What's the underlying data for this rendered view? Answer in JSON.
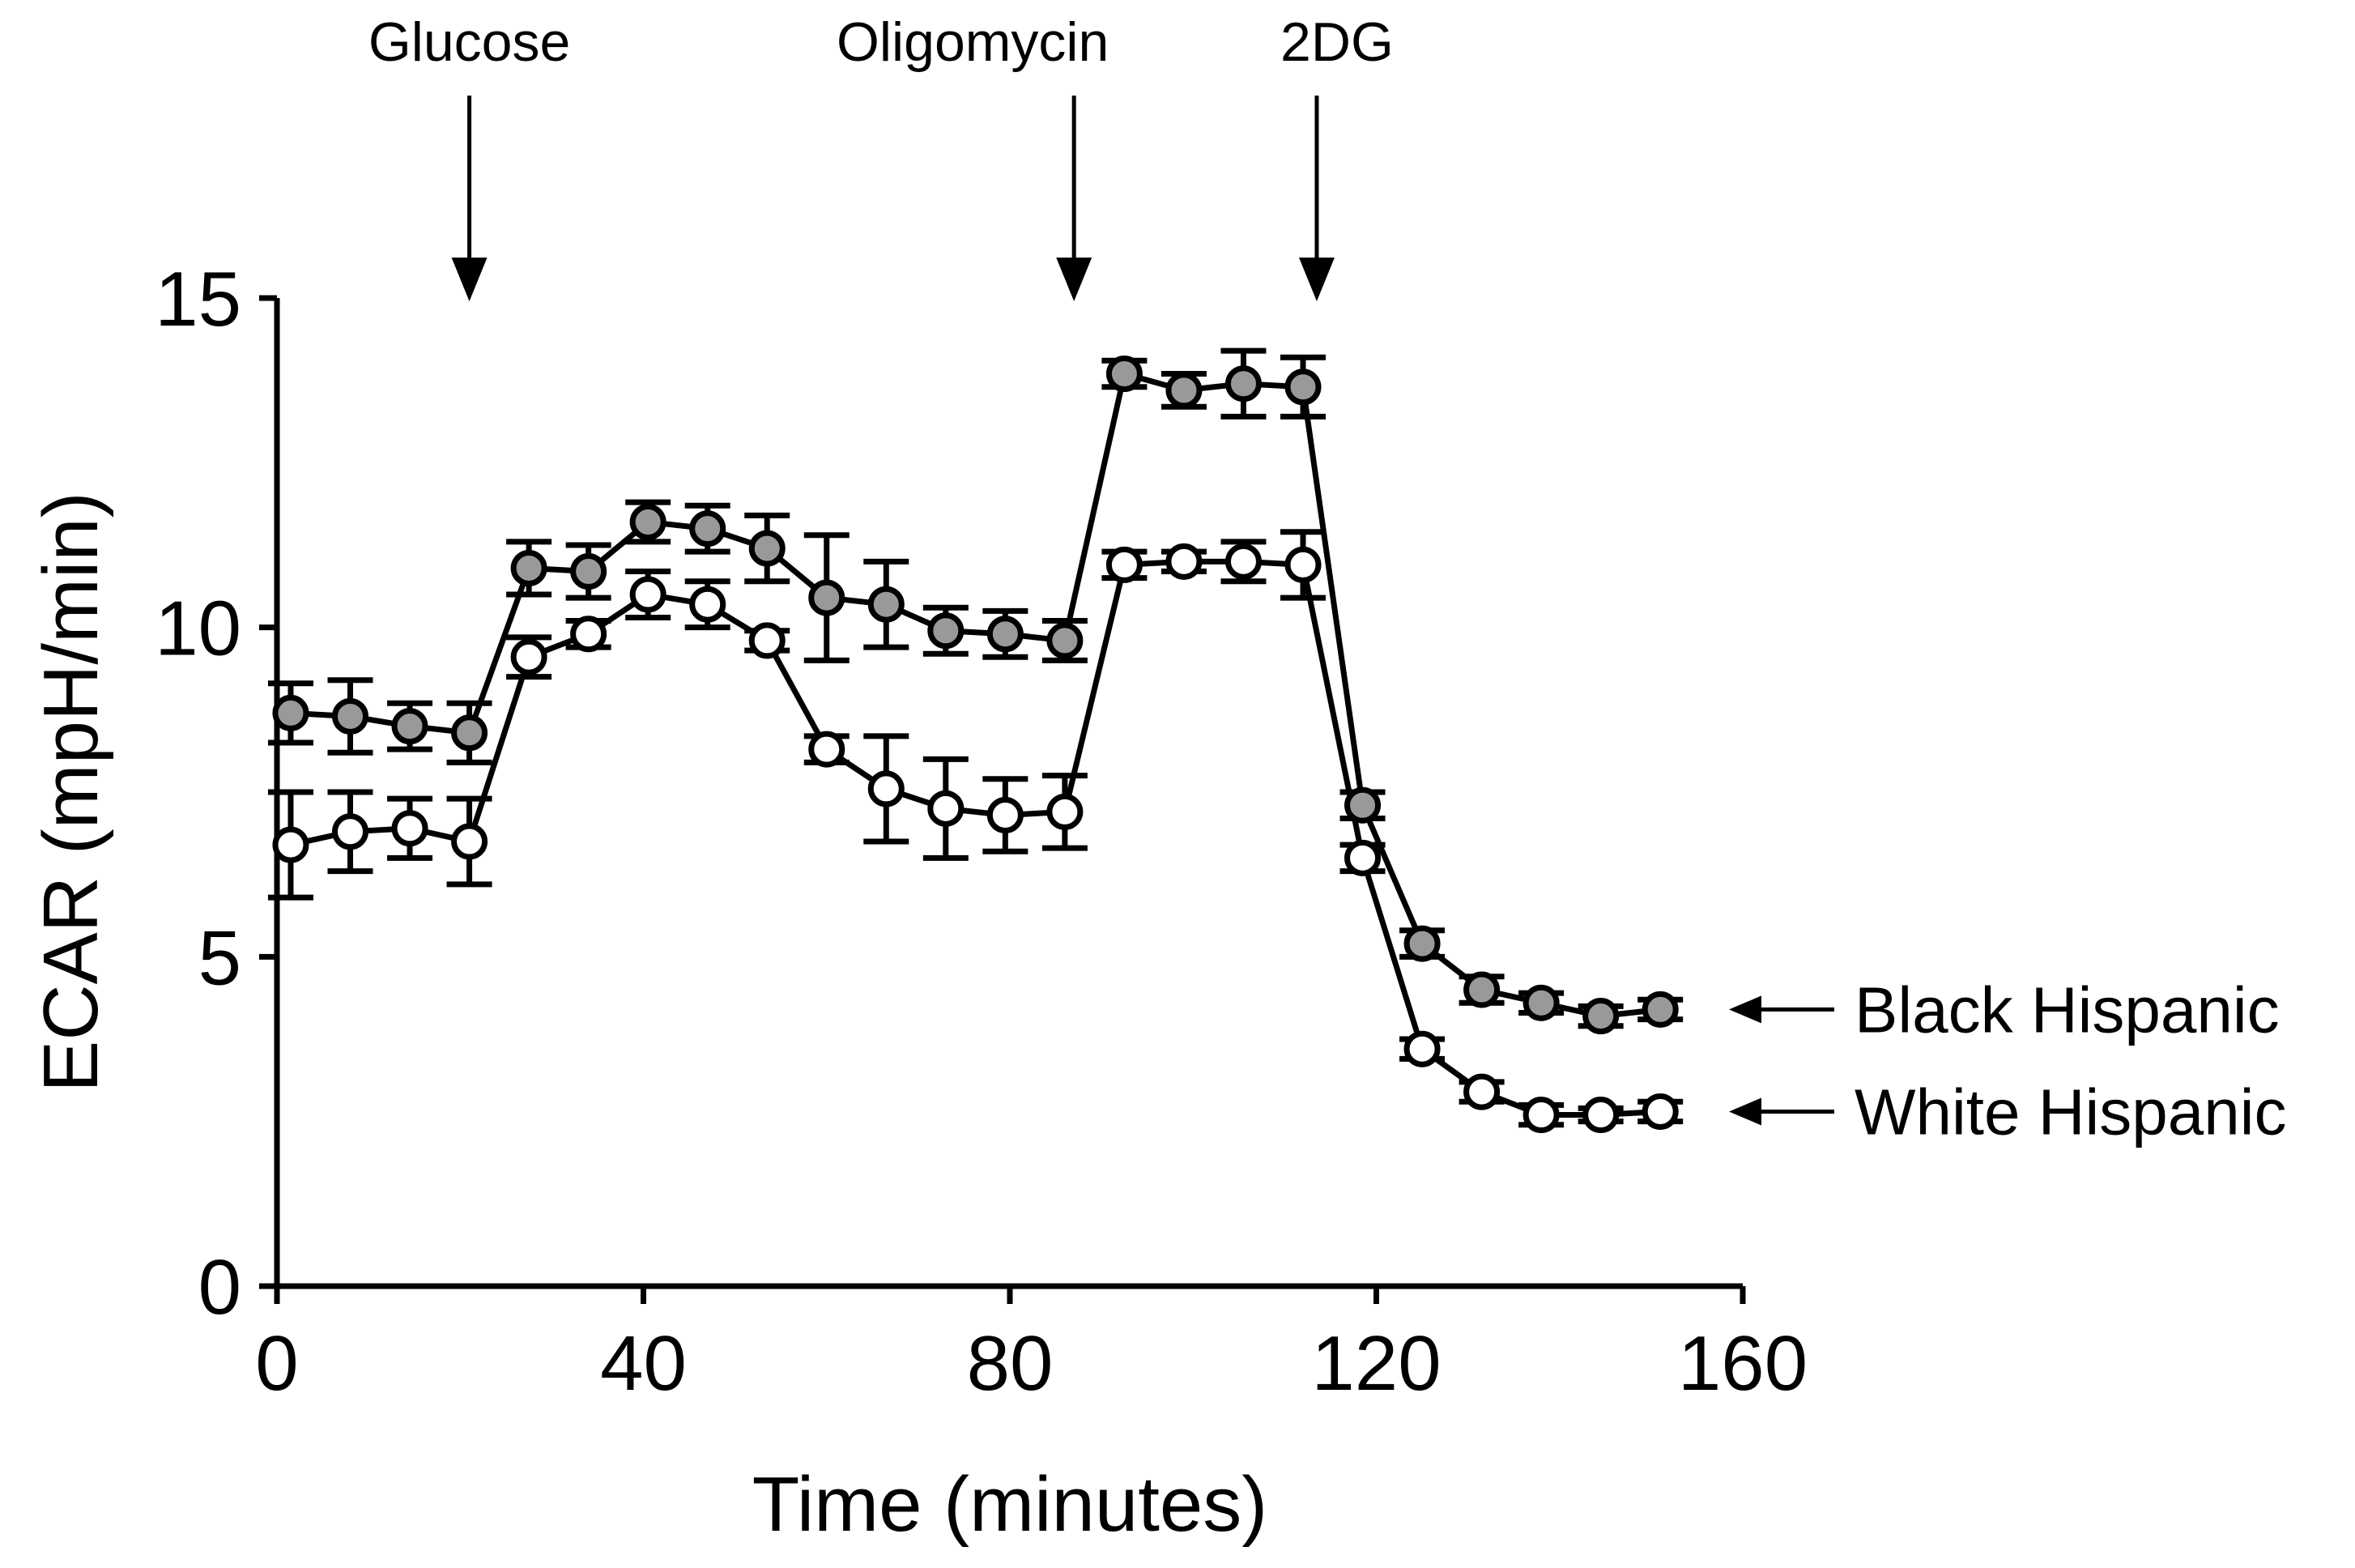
{
  "chart_data": {
    "type": "line",
    "title": "",
    "xlabel": "Time (minutes)",
    "ylabel": "ECAR (mpH/min)",
    "xlim": [
      0,
      160
    ],
    "ylim": [
      0,
      15
    ],
    "xticks": [
      0,
      40,
      80,
      120,
      160
    ],
    "yticks": [
      0,
      5,
      10,
      15
    ],
    "x": [
      1.5,
      8,
      14.5,
      21,
      27.5,
      34,
      40.5,
      47,
      53.5,
      60,
      66.5,
      73,
      79.5,
      86,
      92.5,
      99,
      105.5,
      112,
      118.5,
      125,
      131.5,
      138,
      144.5,
      151
    ],
    "series": [
      {
        "name": "Black Hispanic",
        "marker": "filled-circle",
        "color": "#999999",
        "values": [
          8.7,
          8.65,
          8.5,
          8.4,
          10.9,
          10.85,
          11.6,
          11.5,
          11.2,
          10.45,
          10.35,
          9.95,
          9.9,
          9.8,
          13.85,
          13.6,
          13.7,
          13.65,
          7.3,
          5.2,
          4.5,
          4.3,
          4.1,
          4.2
        ],
        "errors": [
          0.45,
          0.55,
          0.35,
          0.45,
          0.4,
          0.4,
          0.3,
          0.35,
          0.5,
          0.95,
          0.65,
          0.35,
          0.35,
          0.3,
          0.2,
          0.25,
          0.5,
          0.45,
          0.2,
          0.2,
          0.2,
          0.15,
          0.15,
          0.15
        ]
      },
      {
        "name": "White Hispanic",
        "marker": "open-circle",
        "color": "#ffffff",
        "values": [
          6.7,
          6.9,
          6.95,
          6.75,
          9.55,
          9.9,
          10.5,
          10.35,
          9.8,
          8.15,
          7.55,
          7.25,
          7.15,
          7.2,
          10.95,
          11.0,
          11.0,
          10.95,
          6.5,
          3.6,
          2.95,
          2.6,
          2.6,
          2.65
        ],
        "errors": [
          0.8,
          0.6,
          0.45,
          0.65,
          0.3,
          0.2,
          0.35,
          0.35,
          0.15,
          0.2,
          0.8,
          0.75,
          0.55,
          0.55,
          0.2,
          0.15,
          0.3,
          0.5,
          0.2,
          0.15,
          0.15,
          0.15,
          0.1,
          0.15
        ]
      }
    ],
    "annotations": [
      {
        "label": "Glucose",
        "x": 21
      },
      {
        "label": "Oligomycin",
        "x": 87
      },
      {
        "label": "2DG",
        "x": 113.5
      }
    ]
  }
}
